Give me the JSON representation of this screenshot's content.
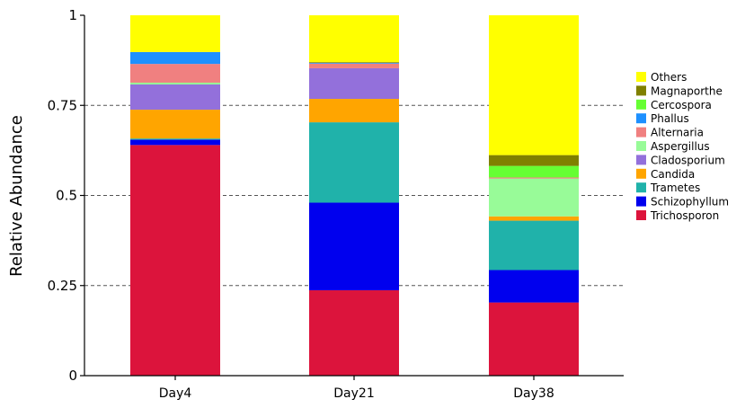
{
  "chart_data": {
    "type": "bar",
    "stacked": true,
    "categories": [
      "Day4",
      "Day21",
      "Day38"
    ],
    "ylabel": "Relative Abundance",
    "xlabel": "",
    "ylim": [
      0,
      1
    ],
    "yticks": [
      0,
      0.25,
      0.5,
      0.75,
      1
    ],
    "ytick_labels": [
      "0",
      "0.25",
      "0.5",
      "0.75",
      "1"
    ],
    "grid": "horizontal dashed at 0.25, 0.5, 0.75",
    "legend_position": "right",
    "series": [
      {
        "name": "Trichosporon",
        "color": "#DC143C",
        "values": [
          0.64,
          0.237,
          0.203
        ]
      },
      {
        "name": "Schizophyllum",
        "color": "#0000EE",
        "values": [
          0.015,
          0.243,
          0.09
        ]
      },
      {
        "name": "Trametes",
        "color": "#20B2AA",
        "values": [
          0.003,
          0.223,
          0.137
        ]
      },
      {
        "name": "Candida",
        "color": "#FFA500",
        "values": [
          0.08,
          0.065,
          0.012
        ]
      },
      {
        "name": "Cladosporium",
        "color": "#9370DB",
        "values": [
          0.07,
          0.085,
          0.0
        ]
      },
      {
        "name": "Aspergillus",
        "color": "#98FB98",
        "values": [
          0.005,
          0.0,
          0.105
        ]
      },
      {
        "name": "Alternaria",
        "color": "#F08080",
        "values": [
          0.052,
          0.013,
          0.003
        ]
      },
      {
        "name": "Phallus",
        "color": "#1E90FF",
        "values": [
          0.033,
          0.002,
          0.0
        ]
      },
      {
        "name": "Cercospora",
        "color": "#66FF33",
        "values": [
          0.0,
          0.0,
          0.032
        ]
      },
      {
        "name": "Magnaporthe",
        "color": "#808000",
        "values": [
          0.0,
          0.002,
          0.03
        ]
      },
      {
        "name": "Others",
        "color": "#FFFF00",
        "values": [
          0.102,
          0.13,
          0.388
        ]
      }
    ]
  }
}
